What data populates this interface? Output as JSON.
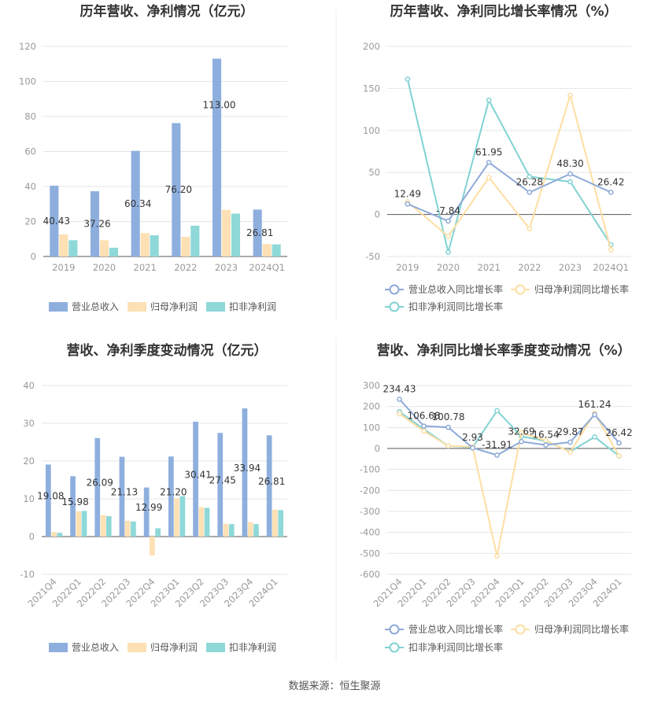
{
  "colors": {
    "revenue": "#8EAFDE",
    "net_profit": "#FDE0B4",
    "deducted_profit": "#8ED8D8",
    "revenue_line": "#8EAAD8",
    "net_profit_line": "#FEDEA3",
    "deducted_line": "#82D2D2",
    "grid": "#E6E6E6",
    "axis": "#555555",
    "divider": "#EDEDED"
  },
  "source_text": "数据来源：恒生聚源",
  "chart_data": [
    {
      "id": "annual_values",
      "type": "bar",
      "title": "历年营收、净利情况（亿元）",
      "categories": [
        "2019",
        "2020",
        "2021",
        "2022",
        "2023",
        "2024Q1"
      ],
      "series": [
        {
          "name": "营业总收入",
          "color_key": "revenue",
          "values": [
            40.43,
            37.26,
            60.34,
            76.2,
            113.0,
            26.81
          ],
          "labels": [
            "40.43",
            "37.26",
            "60.34",
            "76.20",
            "113.00",
            "26.81"
          ]
        },
        {
          "name": "归母净利润",
          "color_key": "net_profit",
          "values": [
            12.6,
            9.3,
            13.4,
            11.2,
            26.6,
            7.1
          ]
        },
        {
          "name": "扣非净利润",
          "color_key": "deducted_profit",
          "values": [
            9.3,
            5.0,
            12.1,
            17.6,
            24.5,
            6.9
          ]
        }
      ],
      "ylim": [
        0,
        120
      ],
      "yticks": [
        0,
        20,
        40,
        60,
        80,
        100,
        120
      ],
      "legend": "bottom"
    },
    {
      "id": "annual_growth",
      "type": "line",
      "title": "历年营收、净利同比增长率情况（%）",
      "categories": [
        "2019",
        "2020",
        "2021",
        "2022",
        "2023",
        "2024Q1"
      ],
      "series": [
        {
          "name": "营业总收入同比增长率",
          "color_key": "revenue_line",
          "values": [
            12.49,
            -7.84,
            61.95,
            26.28,
            48.3,
            26.42
          ],
          "labels": [
            "12.49",
            "-7.84",
            "61.95",
            "26.28",
            "48.30",
            "26.42"
          ]
        },
        {
          "name": "归母净利润同比增长率",
          "color_key": "net_profit_line",
          "values": [
            15,
            -26,
            44,
            -17,
            142,
            -42
          ]
        },
        {
          "name": "扣非净利润同比增长率",
          "color_key": "deducted_line",
          "values": [
            161,
            -45,
            136,
            45,
            39,
            -36
          ]
        }
      ],
      "ylim": [
        -50,
        200
      ],
      "yticks": [
        -50,
        0,
        50,
        100,
        150,
        200
      ],
      "legend": "bottom"
    },
    {
      "id": "quarterly_values",
      "type": "bar",
      "title": "营收、净利季度变动情况（亿元）",
      "categories": [
        "2021Q4",
        "2022Q1",
        "2022Q2",
        "2022Q3",
        "2022Q4",
        "2023Q1",
        "2023Q2",
        "2023Q3",
        "2023Q4",
        "2024Q1"
      ],
      "series": [
        {
          "name": "营业总收入",
          "color_key": "revenue",
          "values": [
            19.08,
            15.98,
            26.09,
            21.13,
            12.99,
            21.2,
            30.41,
            27.45,
            33.94,
            26.81
          ],
          "labels": [
            "19.08",
            "15.98",
            "26.09",
            "21.13",
            "12.99",
            "21.20",
            "30.41",
            "27.45",
            "33.94",
            "26.81"
          ]
        },
        {
          "name": "归母净利润",
          "color_key": "net_profit",
          "values": [
            1.2,
            6.7,
            5.7,
            4.2,
            -5.0,
            10.2,
            7.8,
            3.4,
            3.8,
            7.1
          ]
        },
        {
          "name": "扣非净利润",
          "color_key": "deducted_profit",
          "values": [
            1.0,
            6.8,
            5.4,
            4.0,
            2.2,
            10.7,
            7.6,
            3.3,
            3.3,
            7.0
          ]
        }
      ],
      "ylim": [
        -10,
        40
      ],
      "yticks": [
        -10,
        0,
        10,
        20,
        30,
        40
      ],
      "legend": "bottom"
    },
    {
      "id": "quarterly_growth",
      "type": "line",
      "title": "营收、净利同比增长率季度变动情况（%）",
      "categories": [
        "2021Q4",
        "2022Q1",
        "2022Q2",
        "2022Q3",
        "2022Q4",
        "2023Q1",
        "2023Q2",
        "2023Q3",
        "2023Q4",
        "2024Q1"
      ],
      "series": [
        {
          "name": "营业总收入同比增长率",
          "color_key": "revenue_line",
          "values": [
            234.43,
            106.68,
            100.78,
            2.93,
            -31.91,
            32.69,
            16.54,
            29.87,
            161.24,
            26.42
          ],
          "labels": [
            "234.43",
            "106.68",
            "100.78",
            "2.93",
            "-31.91",
            "32.69",
            "16.54",
            "29.87",
            "161.24",
            "26.42"
          ]
        },
        {
          "name": "归母净利润同比增长率",
          "color_key": "net_profit_line",
          "values": [
            165,
            83,
            12,
            8,
            -513,
            75,
            38,
            -18,
            168,
            -35
          ]
        },
        {
          "name": "扣非净利润同比增长率",
          "color_key": "deducted_line",
          "values": [
            175,
            92,
            12,
            5,
            180,
            58,
            35,
            -15,
            55,
            -36
          ]
        }
      ],
      "ylim": [
        -600,
        300
      ],
      "yticks": [
        -600,
        -500,
        -400,
        -300,
        -200,
        -100,
        0,
        100,
        200,
        300
      ],
      "legend": "bottom"
    }
  ]
}
